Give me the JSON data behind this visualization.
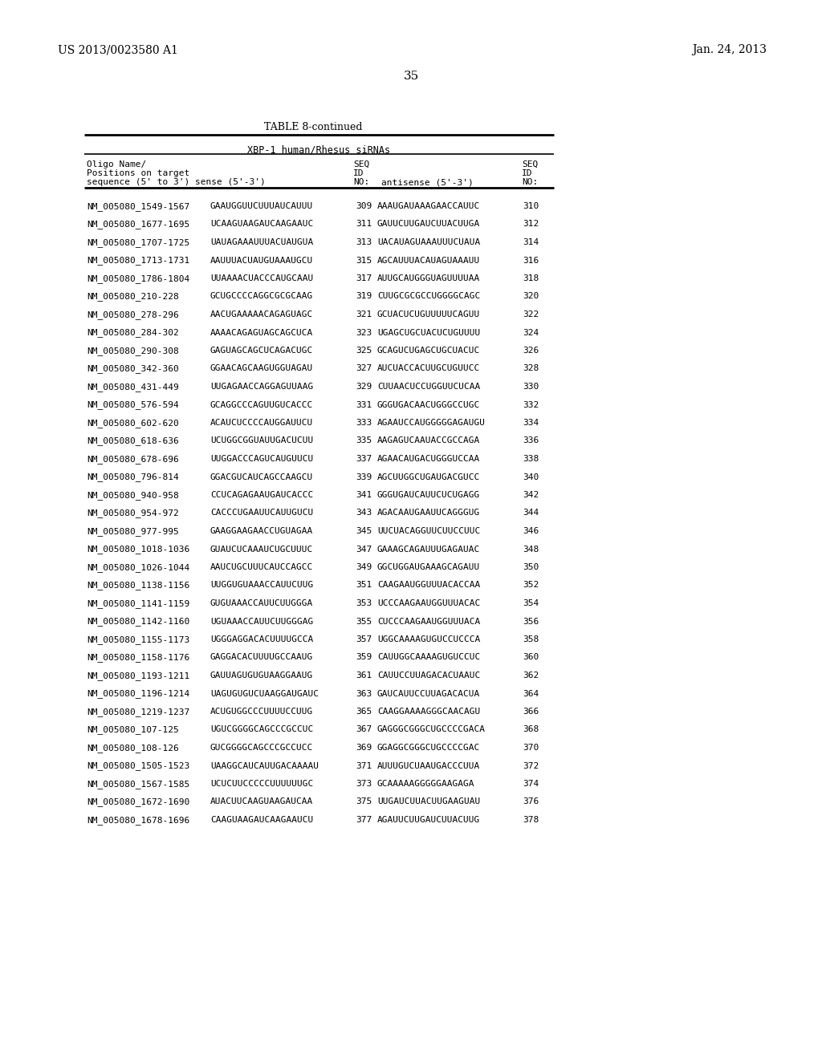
{
  "patent_left": "US 2013/0023580 A1",
  "patent_right": "Jan. 24, 2013",
  "page_number": "35",
  "table_title": "TABLE 8-continued",
  "table_subtitle": "XBP-1 human/Rhesus siRNAs",
  "rows": [
    [
      "NM_005080_1549-1567",
      "GAAUGGUUCUUUAUCAUUU",
      "309",
      "AAAUGAUAAAGAACCAUUC",
      "310"
    ],
    [
      "NM_005080_1677-1695",
      "UCAAGUAAGAUCAAGAAUC",
      "311",
      "GAUUCUUGAUCUUACUUGA",
      "312"
    ],
    [
      "NM_005080_1707-1725",
      "UAUAGAAAUUUACUAUGUA",
      "313",
      "UACAUAGUAAAUUUCUAUA",
      "314"
    ],
    [
      "NM_005080_1713-1731",
      "AAUUUACUAUGUAAAUGCU",
      "315",
      "AGCAUUUACAUAGUAAAUU",
      "316"
    ],
    [
      "NM_005080_1786-1804",
      "UUAAAACUACCCAUGCAAU",
      "317",
      "AUUGCAUGGGUAGUUUUAA",
      "318"
    ],
    [
      "NM_005080_210-228",
      "GCUGCCCCAGGCGCGCAAG",
      "319",
      "CUUGCGCGCCUGGGGCAGC",
      "320"
    ],
    [
      "NM_005080_278-296",
      "AACUGAAAAACAGAGUAGC",
      "321",
      "GCUACUCUGUUUUUCAGUU",
      "322"
    ],
    [
      "NM_005080_284-302",
      "AAAACAGAGUAGCAGCUCA",
      "323",
      "UGAGCUGCUACUCUGUUUU",
      "324"
    ],
    [
      "NM_005080_290-308",
      "GAGUAGCAGCUCAGACUGC",
      "325",
      "GCAGUCUGAGCUGCUACUC",
      "326"
    ],
    [
      "NM_005080_342-360",
      "GGAACAGCAAGUGGUAGAU",
      "327",
      "AUCUACCACUUGCUGUUCC",
      "328"
    ],
    [
      "NM_005080_431-449",
      "UUGAGAACCAGGAGUUAAG",
      "329",
      "CUUAACUCCUGGUUCUCAA",
      "330"
    ],
    [
      "NM_005080_576-594",
      "GCAGGCCCAGUUGUCACCC",
      "331",
      "GGGUGACAACUGGGCCUGC",
      "332"
    ],
    [
      "NM_005080_602-620",
      "ACAUCUCCCCAUGGAUUCU",
      "333",
      "AGAAUCCAUGGGGGAGAUGU",
      "334"
    ],
    [
      "NM_005080_618-636",
      "UCUGGCGGUAUUGACUCUU",
      "335",
      "AAGAGUCAAUACCGCCAGA",
      "336"
    ],
    [
      "NM_005080_678-696",
      "UUGGACCCAGUCAUGUUCU",
      "337",
      "AGAACAUGACUGGGUCCAA",
      "338"
    ],
    [
      "NM_005080_796-814",
      "GGACGUCAUCAGCCAAGCU",
      "339",
      "AGCUUGGCUGAUGACGUCC",
      "340"
    ],
    [
      "NM_005080_940-958",
      "CCUCAGAGAAUGAUCACCC",
      "341",
      "GGGUGAUCAUUCUCUGAGG",
      "342"
    ],
    [
      "NM_005080_954-972",
      "CACCCUGAAUUCAUUGUCU",
      "343",
      "AGACAAUGAAUUCAGGGUG",
      "344"
    ],
    [
      "NM_005080_977-995",
      "GAAGGAAGAACCUGUAGAA",
      "345",
      "UUCUACAGGUUCUUCCUUC",
      "346"
    ],
    [
      "NM_005080_1018-1036",
      "GUAUCUCAAAUCUGCUUUC",
      "347",
      "GAAAGCAGAUUUGAGAUAC",
      "348"
    ],
    [
      "NM_005080_1026-1044",
      "AAUCUGCUUUCAUCCAGCC",
      "349",
      "GGCUGGAUGAAAGCAGAUU",
      "350"
    ],
    [
      "NM_005080_1138-1156",
      "UUGGUGUAAACCAUUCUUG",
      "351",
      "CAAGAAUGGUUUACACCAA",
      "352"
    ],
    [
      "NM_005080_1141-1159",
      "GUGUAAACCAUUCUUGGGA",
      "353",
      "UCCCAAGAAUGGUUUACAC",
      "354"
    ],
    [
      "NM_005080_1142-1160",
      "UGUAAACCAUUCUUGGGAG",
      "355",
      "CUCCCAAGAAUGGUUUACA",
      "356"
    ],
    [
      "NM_005080_1155-1173",
      "UGGGAGGACACUUUUGCCA",
      "357",
      "UGGCAAAAGUGUCCUCCCA",
      "358"
    ],
    [
      "NM_005080_1158-1176",
      "GAGGACACUUUUGCCAAUG",
      "359",
      "CAUUGGCAAAAGUGUCCUC",
      "360"
    ],
    [
      "NM_005080_1193-1211",
      "GAUUAGUGUGUAAGGAAUG",
      "361",
      "CAUUCCUUAGACACUAAUC",
      "362"
    ],
    [
      "NM_005080_1196-1214",
      "UAGUGUGUCUAAGGAUGAUC",
      "363",
      "GAUCAUUCCUUAGACACUA",
      "364"
    ],
    [
      "NM_005080_1219-1237",
      "ACUGUGGCCCUUUUCCUUG",
      "365",
      "CAAGGAAAAGGGCAACAGU",
      "366"
    ],
    [
      "NM_005080_107-125",
      "UGUCGGGGCAGCCCGCCUC",
      "367",
      "GAGGGCGGGCUGCCCCGACA",
      "368"
    ],
    [
      "NM_005080_108-126",
      "GUCGGGGCAGCCCGCCUCC",
      "369",
      "GGAGGCGGGCUGCCCCGAC",
      "370"
    ],
    [
      "NM_005080_1505-1523",
      "UAAGGCAUCAUUGACAAAAU",
      "371",
      "AUUUGUCUAAUGACCCUUA",
      "372"
    ],
    [
      "NM_005080_1567-1585",
      "UCUCUUCCCCCUUUUUUGC",
      "373",
      "GCAAAAAGGGGGAAGAGA",
      "374"
    ],
    [
      "NM_005080_1672-1690",
      "AUACUUCAAGUAAGAUCAA",
      "375",
      "UUGAUCUUACUUGAAGUAU",
      "376"
    ],
    [
      "NM_005080_1678-1696",
      "CAAGUAAGAUCAAGAAUCU",
      "377",
      "AGAUUCUUGAUCUUACUUG",
      "378"
    ]
  ],
  "bg_color": "#ffffff",
  "text_color": "#000000",
  "line_color": "#000000"
}
